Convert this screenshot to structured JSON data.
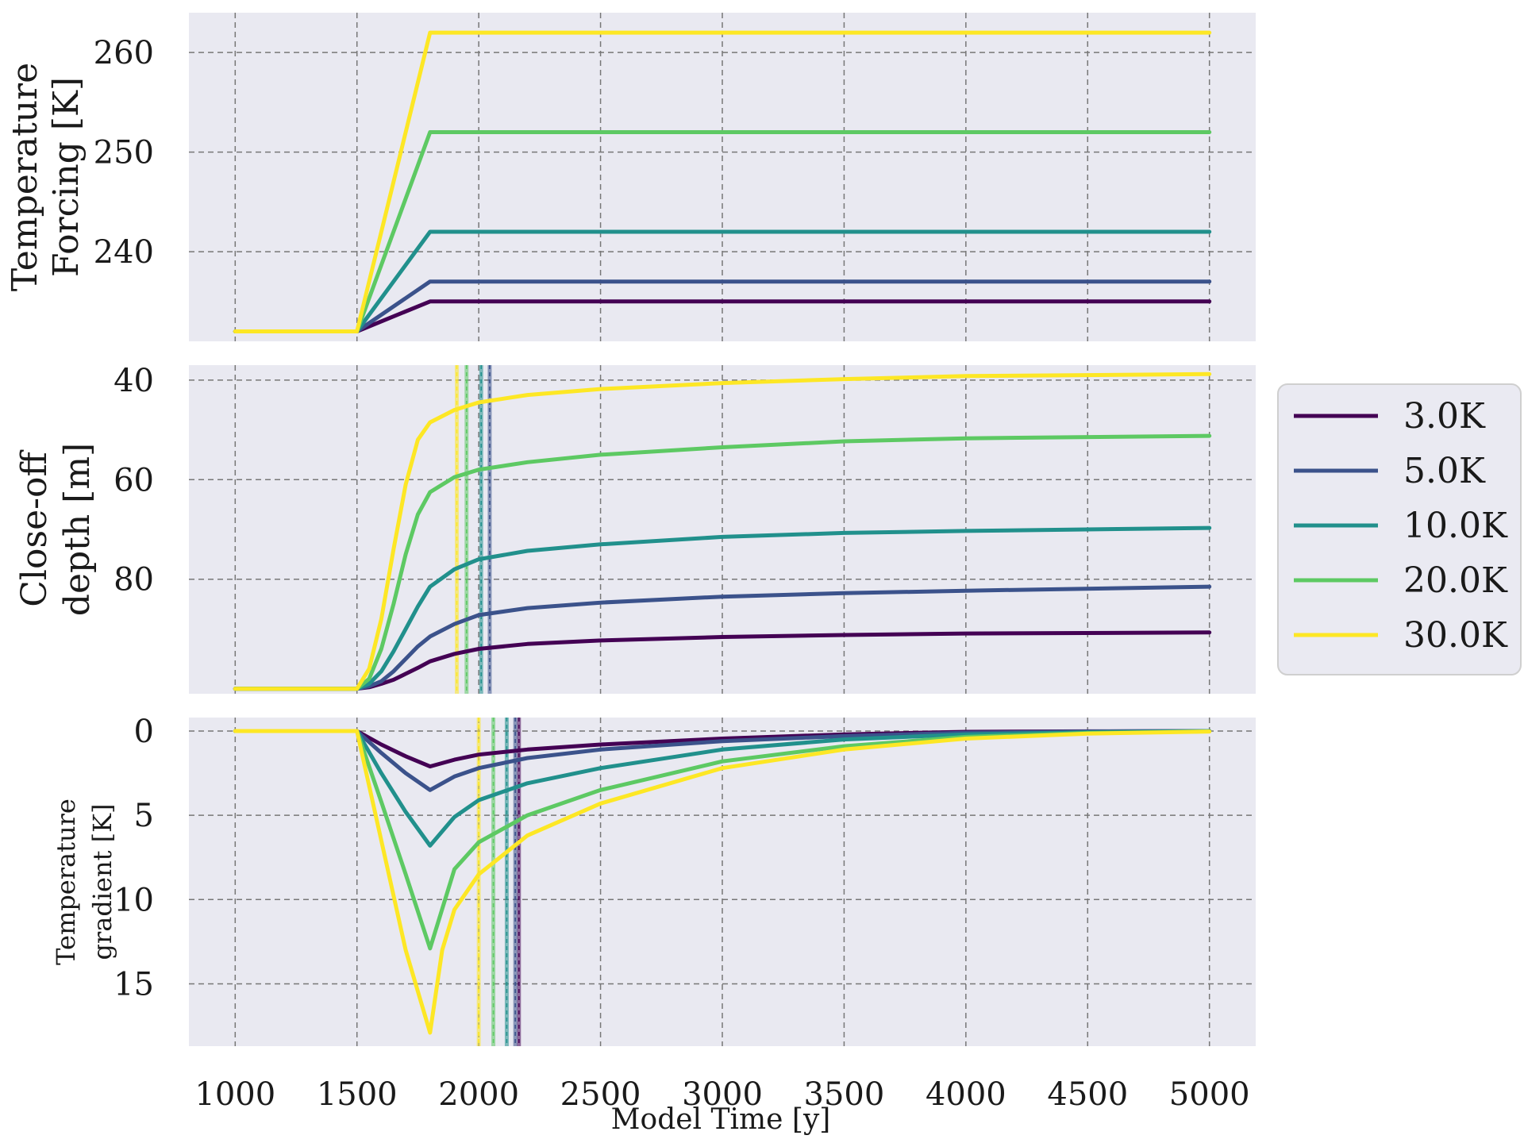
{
  "xlabel": "Model Time [y]",
  "colors": {
    "plot_bg": "#e9e9f1",
    "grid": "#777777",
    "s3": "#440154",
    "s5": "#3b528b",
    "s10": "#21908c",
    "s20": "#5dc963",
    "s30": "#fde725"
  },
  "legend": {
    "placement": "right of middle panel",
    "items": [
      "3.0K",
      "5.0K",
      "10.0K",
      "20.0K",
      "30.0K"
    ]
  },
  "chart_data": [
    {
      "type": "line",
      "panel": "top",
      "ylabel_lines": [
        "Temperature",
        "Forcing [K]"
      ],
      "xlim": [
        810,
        5190
      ],
      "ylim": [
        231,
        264
      ],
      "x_ticks": [
        1000,
        1500,
        2000,
        2500,
        3000,
        3500,
        4000,
        4500,
        5000
      ],
      "y_ticks": [
        240,
        250,
        260
      ],
      "grid": true,
      "series": [
        {
          "name": "3.0K",
          "color": "#440154",
          "x": [
            1000,
            1500,
            1800,
            5000
          ],
          "y": [
            232,
            232,
            235,
            235
          ]
        },
        {
          "name": "5.0K",
          "color": "#3b528b",
          "x": [
            1000,
            1500,
            1800,
            5000
          ],
          "y": [
            232,
            232,
            237,
            237
          ]
        },
        {
          "name": "10.0K",
          "color": "#21908c",
          "x": [
            1000,
            1500,
            1800,
            5000
          ],
          "y": [
            232,
            232,
            242,
            242
          ]
        },
        {
          "name": "20.0K",
          "color": "#5dc963",
          "x": [
            1000,
            1500,
            1800,
            5000
          ],
          "y": [
            232,
            232,
            252,
            252
          ]
        },
        {
          "name": "30.0K",
          "color": "#fde725",
          "x": [
            1000,
            1500,
            1800,
            5000
          ],
          "y": [
            232,
            232,
            262,
            262
          ]
        }
      ]
    },
    {
      "type": "line",
      "panel": "middle",
      "ylabel_lines": [
        "Close-off",
        "depth [m]"
      ],
      "xlim": [
        810,
        5190
      ],
      "ylim": [
        103,
        37
      ],
      "y_inverted": true,
      "x_ticks": [
        1000,
        1500,
        2000,
        2500,
        3000,
        3500,
        4000,
        4500,
        5000
      ],
      "y_ticks": [
        40,
        60,
        80
      ],
      "grid": true,
      "vlines": [
        {
          "x": 2045,
          "color": "#3b528b"
        },
        {
          "x": 2010,
          "color": "#21908c"
        },
        {
          "x": 1950,
          "color": "#5dc963"
        },
        {
          "x": 1910,
          "color": "#fde725"
        }
      ],
      "series": [
        {
          "name": "3.0K",
          "color": "#440154",
          "x": [
            1000,
            1500,
            1550,
            1600,
            1650,
            1700,
            1750,
            1800,
            1900,
            2000,
            2200,
            2500,
            3000,
            3500,
            4000,
            5000
          ],
          "y": [
            102,
            102,
            101.7,
            101,
            100.2,
            99,
            97.8,
            96.5,
            95,
            94,
            93,
            92.3,
            91.6,
            91.2,
            90.9,
            90.7
          ]
        },
        {
          "name": "5.0K",
          "color": "#3b528b",
          "x": [
            1000,
            1500,
            1550,
            1600,
            1650,
            1700,
            1750,
            1800,
            1900,
            2000,
            2200,
            2500,
            3000,
            3500,
            4000,
            5000
          ],
          "y": [
            102,
            102,
            101.5,
            100.5,
            98.5,
            96,
            93.5,
            91.5,
            89,
            87.2,
            85.8,
            84.7,
            83.5,
            82.8,
            82.3,
            81.5
          ]
        },
        {
          "name": "10.0K",
          "color": "#21908c",
          "x": [
            1000,
            1500,
            1550,
            1600,
            1650,
            1700,
            1750,
            1800,
            1900,
            2000,
            2200,
            2500,
            3000,
            3500,
            4000,
            5000
          ],
          "y": [
            102,
            102,
            101,
            98.5,
            94.5,
            90,
            85.5,
            81.5,
            78,
            76,
            74.3,
            73,
            71.5,
            70.7,
            70.3,
            69.7
          ]
        },
        {
          "name": "20.0K",
          "color": "#5dc963",
          "x": [
            1000,
            1500,
            1550,
            1600,
            1650,
            1700,
            1750,
            1800,
            1900,
            2000,
            2200,
            2500,
            3000,
            3500,
            4000,
            5000
          ],
          "y": [
            102,
            102,
            100,
            94,
            85,
            75,
            67,
            62.5,
            59.5,
            58,
            56.5,
            55,
            53.5,
            52.3,
            51.7,
            51.2
          ]
        },
        {
          "name": "30.0K",
          "color": "#fde725",
          "x": [
            1000,
            1500,
            1550,
            1600,
            1650,
            1700,
            1750,
            1800,
            1900,
            2000,
            2200,
            2500,
            3000,
            3500,
            4000,
            5000
          ],
          "y": [
            102,
            102,
            98,
            88,
            74,
            61,
            52,
            48.5,
            46,
            44.5,
            43,
            41.8,
            40.6,
            39.8,
            39.2,
            38.8
          ]
        }
      ]
    },
    {
      "type": "line",
      "panel": "bottom",
      "ylabel_lines": [
        "Temperature",
        "gradient [K]"
      ],
      "xlim": [
        810,
        5190
      ],
      "ylim": [
        18.7,
        -0.8
      ],
      "y_inverted": true,
      "x_ticks": [
        1000,
        1500,
        2000,
        2500,
        3000,
        3500,
        4000,
        4500,
        5000
      ],
      "y_ticks": [
        0,
        5,
        10,
        15
      ],
      "grid": true,
      "vlines": [
        {
          "x": 2165,
          "color": "#440154"
        },
        {
          "x": 2150,
          "color": "#3b528b"
        },
        {
          "x": 2115,
          "color": "#21908c"
        },
        {
          "x": 2060,
          "color": "#5dc963"
        },
        {
          "x": 2000,
          "color": "#fde725"
        }
      ],
      "series": [
        {
          "name": "3.0K",
          "color": "#440154",
          "x": [
            1000,
            1500,
            1600,
            1700,
            1800,
            1900,
            2000,
            2200,
            2500,
            3000,
            3500,
            4000,
            4500,
            5000
          ],
          "y": [
            0,
            0,
            0.8,
            1.5,
            2.1,
            1.7,
            1.4,
            1.1,
            0.8,
            0.45,
            0.2,
            0.05,
            0.02,
            0
          ]
        },
        {
          "name": "5.0K",
          "color": "#3b528b",
          "x": [
            1000,
            1500,
            1600,
            1700,
            1800,
            1900,
            2000,
            2200,
            2500,
            3000,
            3500,
            4000,
            4500,
            5000
          ],
          "y": [
            0,
            0,
            1.3,
            2.5,
            3.5,
            2.7,
            2.2,
            1.6,
            1.1,
            0.6,
            0.3,
            0.1,
            0.03,
            0
          ]
        },
        {
          "name": "10.0K",
          "color": "#21908c",
          "x": [
            1000,
            1500,
            1600,
            1700,
            1800,
            1900,
            2000,
            2200,
            2500,
            3000,
            3500,
            4000,
            4500,
            5000
          ],
          "y": [
            0,
            0,
            2.5,
            4.8,
            6.8,
            5.1,
            4.1,
            3.1,
            2.2,
            1.1,
            0.5,
            0.2,
            0.07,
            0
          ]
        },
        {
          "name": "20.0K",
          "color": "#5dc963",
          "x": [
            1000,
            1500,
            1600,
            1700,
            1800,
            1900,
            2000,
            2200,
            2500,
            3000,
            3500,
            4000,
            4500,
            5000
          ],
          "y": [
            0,
            0,
            4.2,
            8.5,
            12.9,
            8.2,
            6.6,
            5.0,
            3.5,
            1.8,
            0.9,
            0.35,
            0.12,
            0.02
          ]
        },
        {
          "name": "30.0K",
          "color": "#fde725",
          "x": [
            1000,
            1500,
            1600,
            1700,
            1800,
            1850,
            1900,
            2000,
            2200,
            2500,
            3000,
            3500,
            4000,
            4500,
            5000
          ],
          "y": [
            0,
            0,
            6.5,
            13,
            17.9,
            13,
            10.6,
            8.5,
            6.2,
            4.3,
            2.2,
            1.1,
            0.45,
            0.15,
            0.03
          ]
        }
      ]
    }
  ]
}
